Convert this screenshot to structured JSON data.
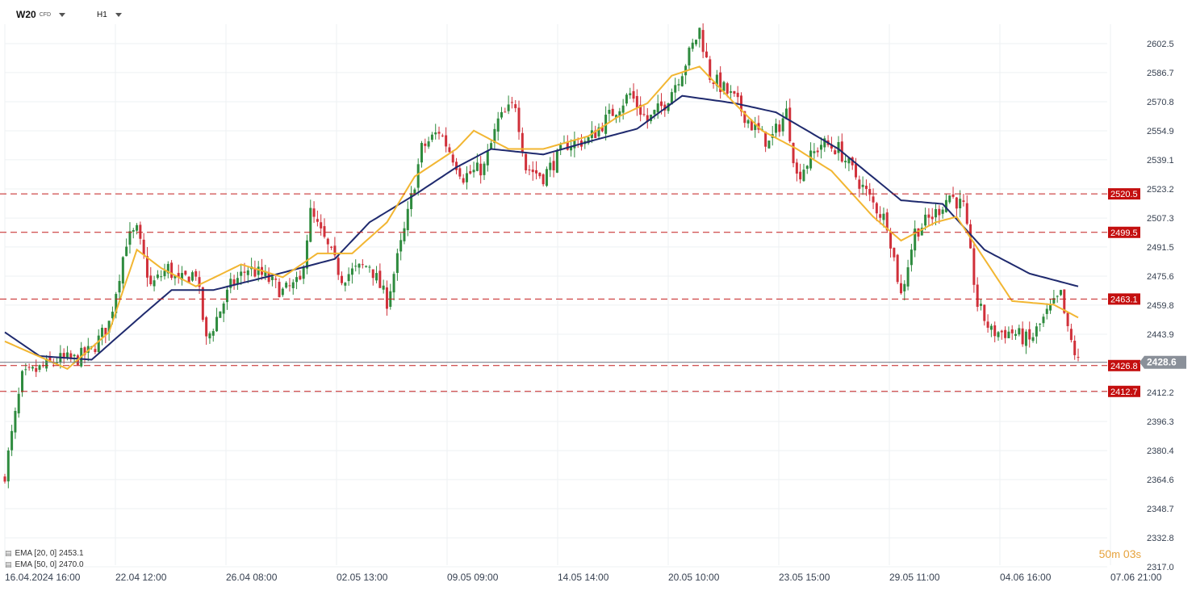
{
  "header": {
    "symbol": "W20",
    "symbol_tag": "CFD",
    "timeframe": "H1"
  },
  "legend": [
    {
      "label": "EMA  [20, 0]  2453.1",
      "color": "#f2b632"
    },
    {
      "label": "EMA  [50, 0]  2470.0",
      "color": "#1f2a6e"
    }
  ],
  "countdown": {
    "minutes": "50",
    "m_unit": "m",
    "seconds": "03",
    "s_unit": "s"
  },
  "chart_data": {
    "type": "candlestick",
    "y_axis_ticks": [
      "2602.5",
      "2586.7",
      "2570.8",
      "2554.9",
      "2539.1",
      "2523.2",
      "2507.3",
      "2491.5",
      "2475.6",
      "2459.8",
      "2443.9",
      "2412.2",
      "2396.3",
      "2380.4",
      "2364.6",
      "2348.7",
      "2332.8",
      "2317.0"
    ],
    "ylim": [
      2317.0,
      2610.0
    ],
    "x_axis_ticks": [
      "16.04.2024  16:00",
      "22.04  12:00",
      "26.04  08:00",
      "02.05  13:00",
      "09.05  09:00",
      "14.05  14:00",
      "20.05  10:00",
      "23.05  15:00",
      "29.05  11:00",
      "04.06  16:00",
      "07.06  21:00"
    ],
    "horizontal_levels": [
      {
        "value": 2520.5,
        "label": "2520.5"
      },
      {
        "value": 2499.5,
        "label": "2499.5"
      },
      {
        "value": 2463.1,
        "label": "2463.1"
      },
      {
        "value": 2426.8,
        "label": "2426.8"
      },
      {
        "value": 2412.7,
        "label": "2412.7"
      }
    ],
    "current_price": {
      "value": 2428.6,
      "label": "2428.6"
    },
    "close_path": [
      [
        0,
        2368
      ],
      [
        5,
        2420
      ],
      [
        10,
        2425
      ],
      [
        15,
        2430
      ],
      [
        20,
        2430
      ],
      [
        25,
        2435
      ],
      [
        30,
        2450
      ],
      [
        35,
        2495
      ],
      [
        38,
        2500
      ],
      [
        42,
        2470
      ],
      [
        47,
        2480
      ],
      [
        50,
        2472
      ],
      [
        55,
        2478
      ],
      [
        58,
        2440
      ],
      [
        65,
        2470
      ],
      [
        70,
        2480
      ],
      [
        75,
        2475
      ],
      [
        80,
        2467
      ],
      [
        85,
        2472
      ],
      [
        88,
        2510
      ],
      [
        92,
        2495
      ],
      [
        97,
        2475
      ],
      [
        100,
        2478
      ],
      [
        105,
        2482
      ],
      [
        110,
        2462
      ],
      [
        115,
        2500
      ],
      [
        120,
        2545
      ],
      [
        125,
        2555
      ],
      [
        132,
        2530
      ],
      [
        138,
        2535
      ],
      [
        142,
        2560
      ],
      [
        147,
        2570
      ],
      [
        150,
        2535
      ],
      [
        155,
        2530
      ],
      [
        162,
        2548
      ],
      [
        168,
        2550
      ],
      [
        175,
        2565
      ],
      [
        180,
        2575
      ],
      [
        185,
        2560
      ],
      [
        190,
        2570
      ],
      [
        195,
        2588
      ],
      [
        200,
        2610
      ],
      [
        203,
        2585
      ],
      [
        210,
        2572
      ],
      [
        215,
        2558
      ],
      [
        220,
        2548
      ],
      [
        225,
        2565
      ],
      [
        228,
        2530
      ],
      [
        235,
        2548
      ],
      [
        240,
        2545
      ],
      [
        245,
        2530
      ],
      [
        250,
        2515
      ],
      [
        254,
        2505
      ],
      [
        258,
        2465
      ],
      [
        262,
        2500
      ],
      [
        268,
        2510
      ],
      [
        272,
        2520
      ],
      [
        276,
        2513
      ],
      [
        280,
        2460
      ],
      [
        284,
        2445
      ],
      [
        290,
        2445
      ],
      [
        295,
        2440
      ],
      [
        300,
        2455
      ],
      [
        304,
        2465
      ],
      [
        306,
        2445
      ],
      [
        309,
        2428.6
      ]
    ],
    "ema20_path": [
      [
        0,
        2440
      ],
      [
        18,
        2425
      ],
      [
        30,
        2445
      ],
      [
        38,
        2490
      ],
      [
        45,
        2480
      ],
      [
        55,
        2470
      ],
      [
        68,
        2482
      ],
      [
        75,
        2478
      ],
      [
        80,
        2475
      ],
      [
        90,
        2488
      ],
      [
        100,
        2488
      ],
      [
        110,
        2505
      ],
      [
        118,
        2530
      ],
      [
        130,
        2545
      ],
      [
        135,
        2555
      ],
      [
        145,
        2545
      ],
      [
        155,
        2545
      ],
      [
        168,
        2552
      ],
      [
        176,
        2562
      ],
      [
        185,
        2570
      ],
      [
        192,
        2585
      ],
      [
        200,
        2590
      ],
      [
        210,
        2570
      ],
      [
        218,
        2555
      ],
      [
        228,
        2545
      ],
      [
        238,
        2533
      ],
      [
        250,
        2508
      ],
      [
        258,
        2495
      ],
      [
        268,
        2505
      ],
      [
        274,
        2508
      ],
      [
        282,
        2485
      ],
      [
        290,
        2462
      ],
      [
        302,
        2460
      ],
      [
        309,
        2453
      ]
    ],
    "ema50_path": [
      [
        0,
        2445
      ],
      [
        10,
        2432
      ],
      [
        25,
        2430
      ],
      [
        40,
        2455
      ],
      [
        48,
        2468
      ],
      [
        60,
        2468
      ],
      [
        75,
        2475
      ],
      [
        95,
        2485
      ],
      [
        105,
        2505
      ],
      [
        118,
        2520
      ],
      [
        130,
        2535
      ],
      [
        140,
        2545
      ],
      [
        155,
        2542
      ],
      [
        170,
        2550
      ],
      [
        182,
        2556
      ],
      [
        195,
        2574
      ],
      [
        210,
        2570
      ],
      [
        222,
        2565
      ],
      [
        240,
        2545
      ],
      [
        258,
        2517
      ],
      [
        270,
        2515
      ],
      [
        282,
        2490
      ],
      [
        295,
        2477
      ],
      [
        309,
        2470
      ]
    ],
    "n_bars": 310,
    "bullish_color": "#2e8b3e",
    "bearish_color": "#d0303a",
    "level_color": "#c41e1e"
  }
}
